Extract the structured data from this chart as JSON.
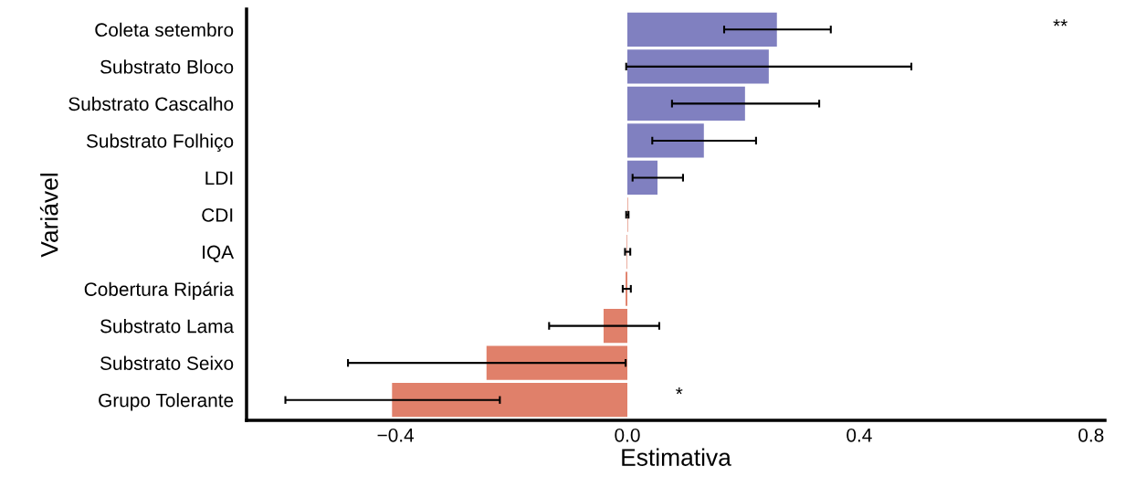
{
  "chart_data": {
    "type": "bar",
    "orientation": "horizontal",
    "xlabel": "Estimativa",
    "ylabel": "Variável",
    "categories": [
      "Coleta setembro",
      "Substrato Bloco",
      "Substrato Cascalho",
      "Substrato Folhiço",
      "LDI",
      "CDI",
      "IQA",
      "Cobertura Ripária",
      "Substrato Lama",
      "Substrato Seixo",
      "Grupo Tolerante"
    ],
    "values": [
      0.258,
      0.244,
      0.203,
      0.132,
      0.052,
      0.001,
      -0.001,
      -0.003,
      -0.041,
      -0.243,
      -0.406
    ],
    "errors": [
      [
        0.167,
        0.351
      ],
      [
        -0.002,
        0.49
      ],
      [
        0.077,
        0.331
      ],
      [
        0.043,
        0.222
      ],
      [
        0.009,
        0.096
      ],
      [
        -0.002,
        0.002
      ],
      [
        -0.004,
        0.005
      ],
      [
        -0.008,
        0.006
      ],
      [
        -0.135,
        0.055
      ],
      [
        -0.482,
        -0.003
      ],
      [
        -0.59,
        -0.22
      ]
    ],
    "colors": [
      "#8080c0",
      "#8080c0",
      "#8080c0",
      "#8080c0",
      "#8080c0",
      "#e0806a",
      "#e0806a",
      "#e0806a",
      "#e0806a",
      "#e0806a",
      "#e0806a"
    ],
    "xlim": [
      -0.657,
      0.824
    ],
    "xticks": [
      {
        "value": -0.4,
        "label": "−0.4"
      },
      {
        "value": 0.0,
        "label": "0.0"
      },
      {
        "value": 0.4,
        "label": "0.4"
      },
      {
        "value": 0.8,
        "label": "0.8"
      }
    ],
    "annotations": [
      "**",
      "*"
    ],
    "grid": false,
    "legend": false
  }
}
